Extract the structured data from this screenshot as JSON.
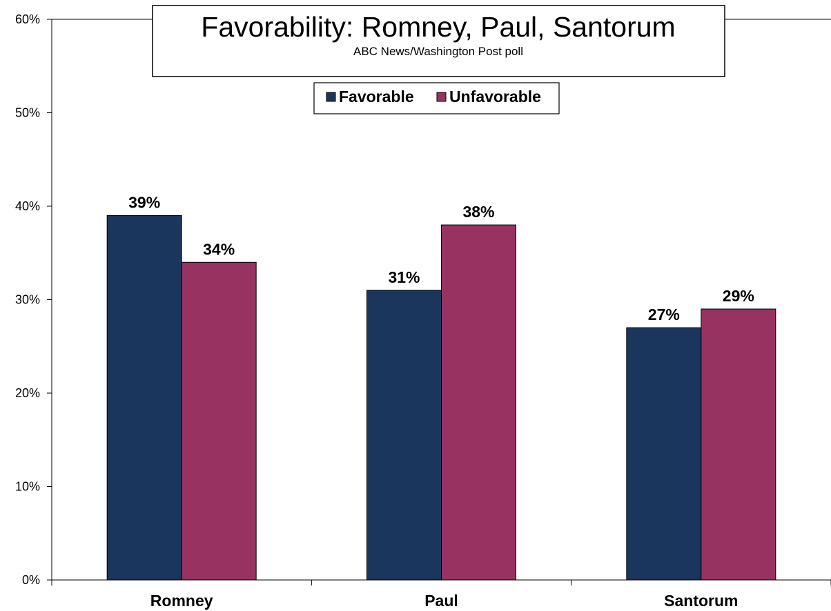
{
  "chart_data": {
    "type": "bar",
    "title": "Favorability: Romney, Paul, Santorum",
    "subtitle": "ABC News/Washington  Post poll",
    "categories": [
      "Romney",
      "Paul",
      "Santorum"
    ],
    "series": [
      {
        "name": "Favorable",
        "values": [
          39,
          31,
          27
        ],
        "labels": [
          "39%",
          "31%",
          "27%"
        ],
        "color": "#1b365d"
      },
      {
        "name": "Unfavorable",
        "values": [
          34,
          38,
          29
        ],
        "labels": [
          "34%",
          "38%",
          "29%"
        ],
        "color": "#983361"
      }
    ],
    "yticks": [
      {
        "value": 0,
        "label": "0%"
      },
      {
        "value": 10,
        "label": "10%"
      },
      {
        "value": 20,
        "label": "20%"
      },
      {
        "value": 30,
        "label": "30%"
      },
      {
        "value": 40,
        "label": "40%"
      },
      {
        "value": 50,
        "label": "50%"
      },
      {
        "value": 60,
        "label": "60%"
      }
    ],
    "ylim": [
      0,
      60
    ],
    "grid": false,
    "legend_position": "top-center"
  }
}
